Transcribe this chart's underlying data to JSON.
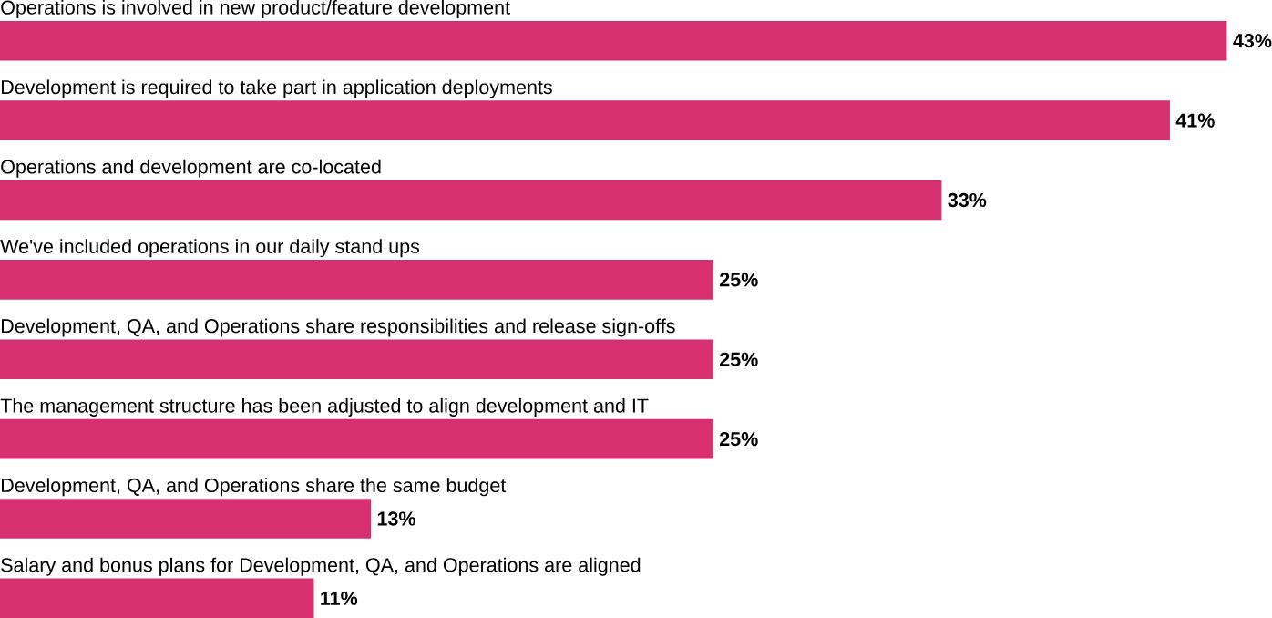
{
  "chart_data": {
    "type": "bar",
    "orientation": "horizontal",
    "categories": [
      "Operations is involved in new product/feature development",
      "Development is required to take part in application deployments",
      "Operations and development are co-located",
      "We've included operations in our daily stand ups",
      "Development, QA, and Operations share responsibilities and release sign-offs",
      "The management structure has been adjusted to align development and IT",
      "Development, QA, and Operations share the same budget",
      "Salary and bonus plans for Development, QA, and Operations are aligned"
    ],
    "values": [
      43,
      41,
      33,
      25,
      25,
      25,
      13,
      11
    ],
    "value_labels": [
      "43%",
      "41%",
      "33%",
      "25%",
      "25%",
      "25%",
      "13%",
      "11%"
    ],
    "color": "#d63070"
  }
}
